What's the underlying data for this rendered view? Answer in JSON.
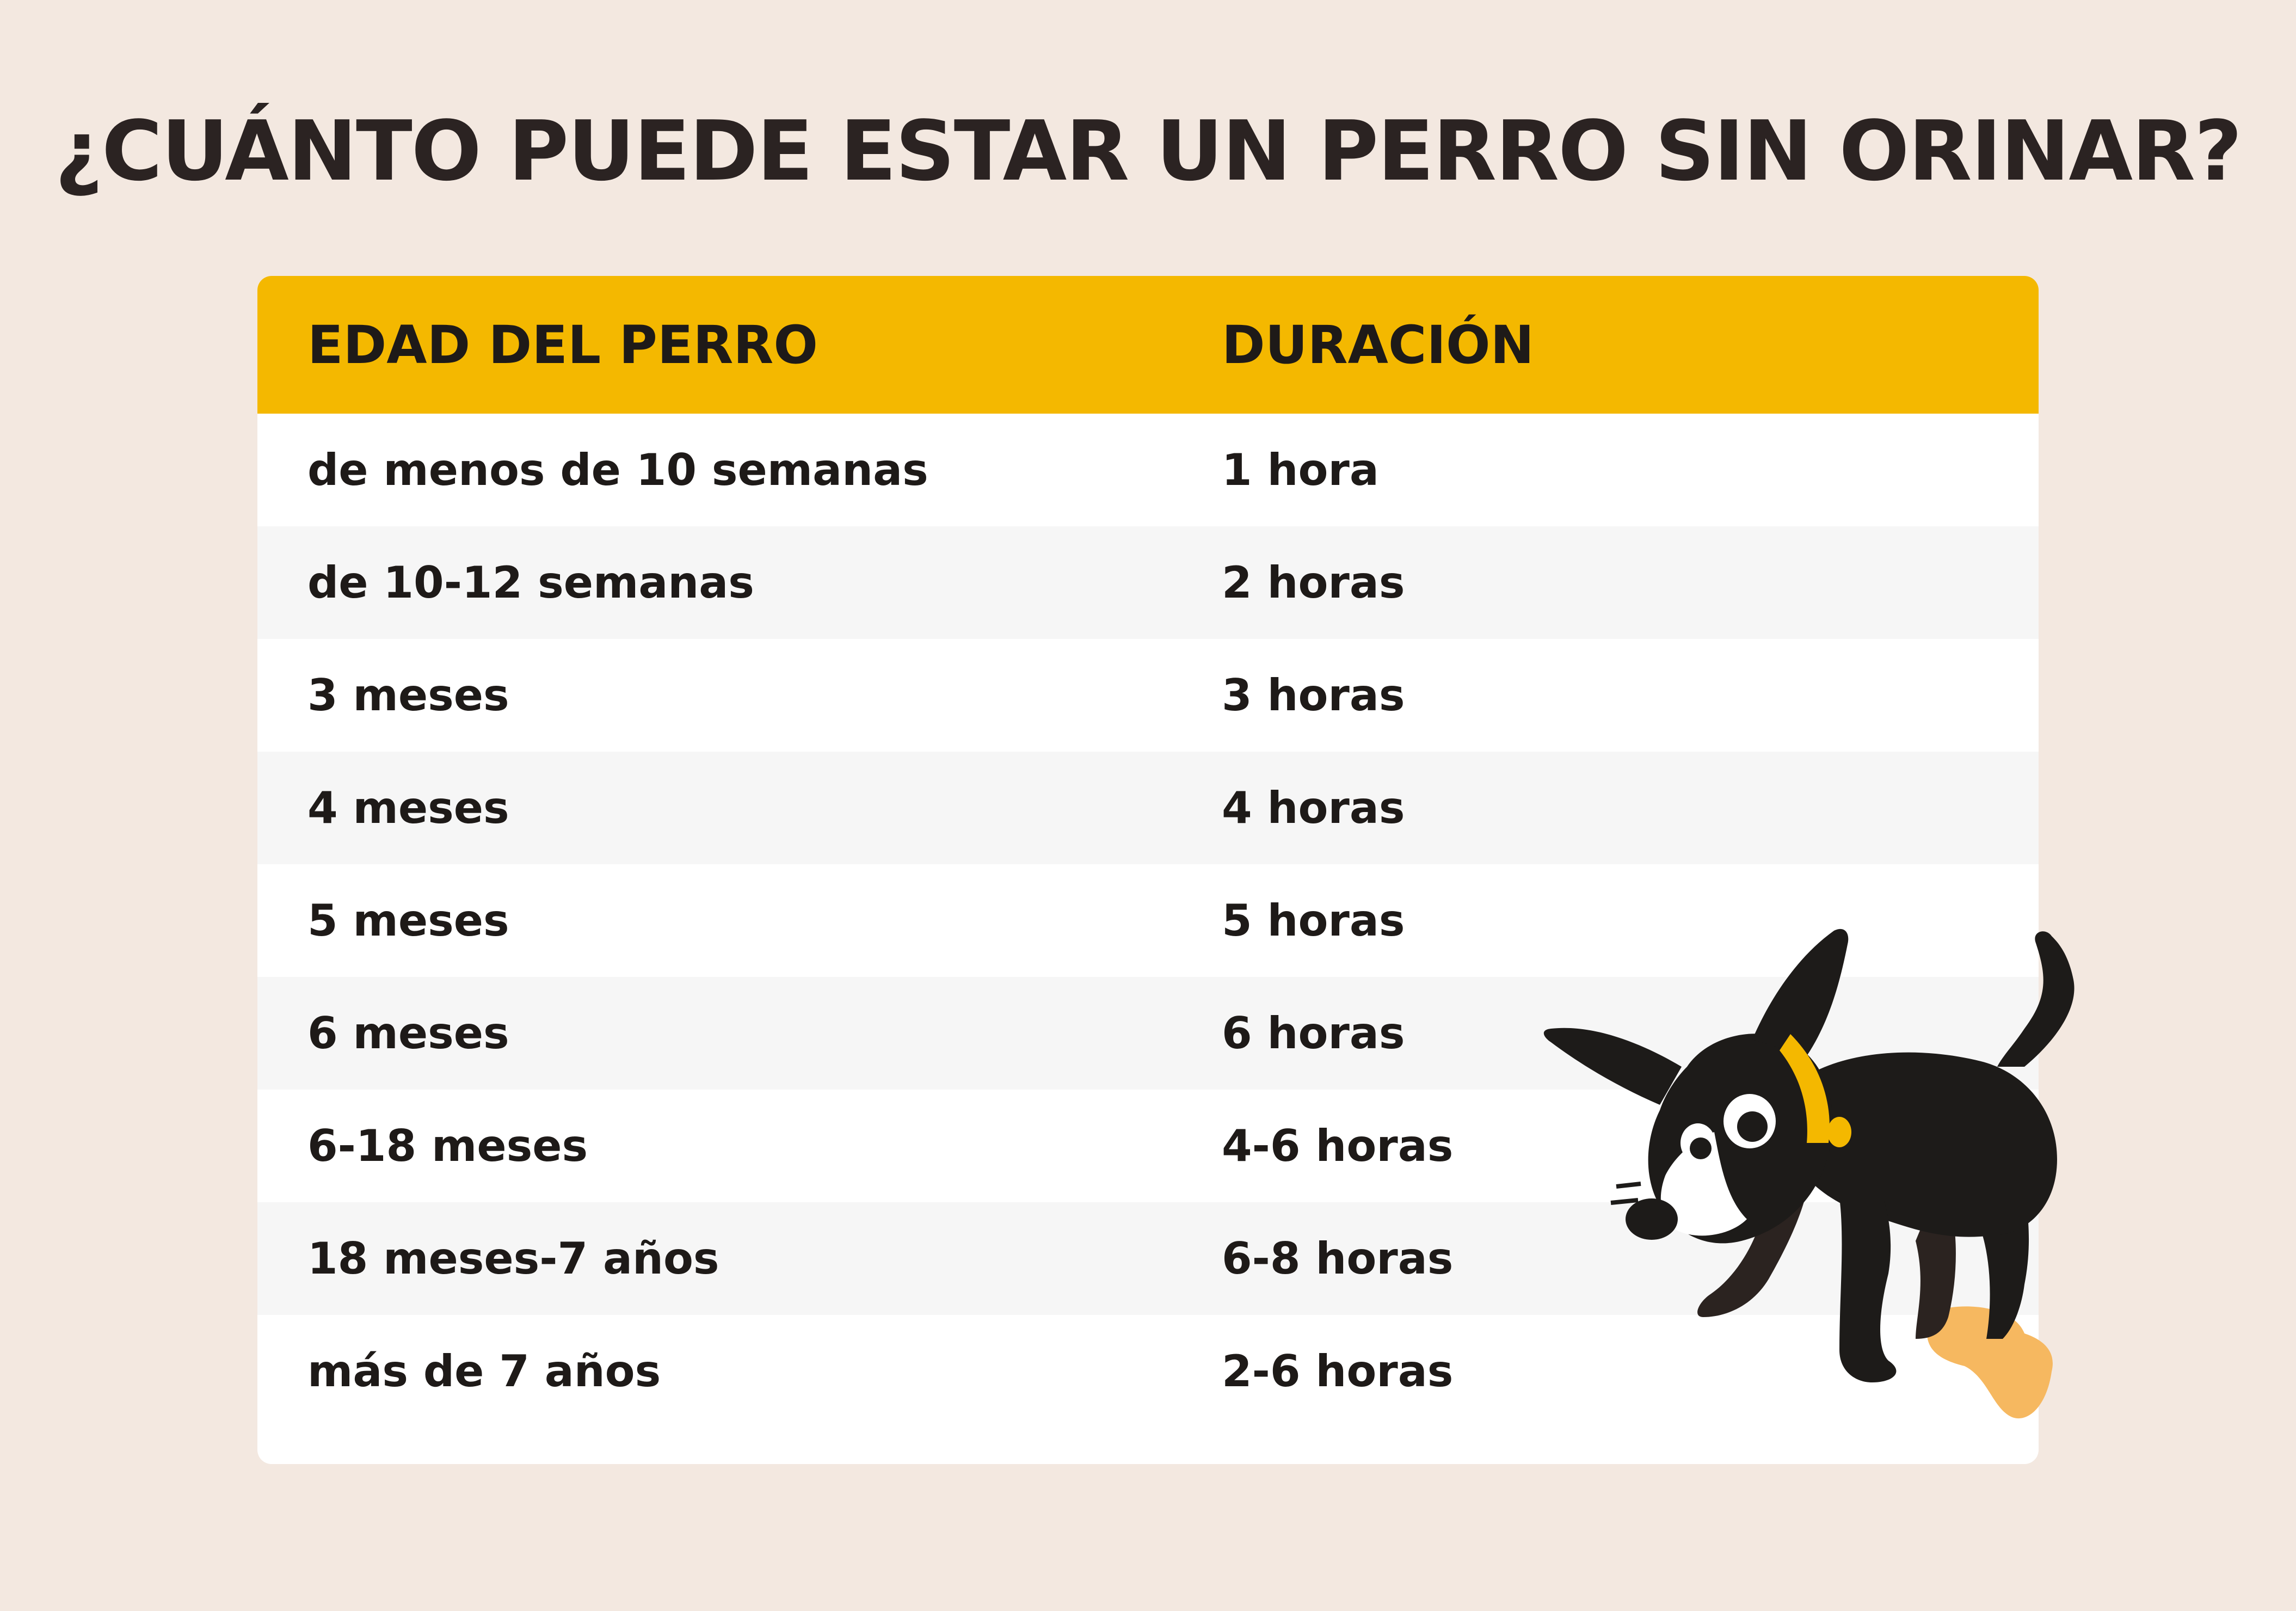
{
  "title": "¿CUÁNTO PUEDE ESTAR UN PERRO SIN ORINAR?",
  "table": {
    "headers": [
      "EDAD DEL PERRO",
      "DURACIÓN"
    ],
    "rows": [
      {
        "age": "de menos de 10 semanas",
        "duration": "1 hora"
      },
      {
        "age": "de 10-12 semanas",
        "duration": "2 horas"
      },
      {
        "age": "3 meses",
        "duration": "3 horas"
      },
      {
        "age": "4 meses",
        "duration": "4 horas"
      },
      {
        "age": "5 meses",
        "duration": "5 horas"
      },
      {
        "age": "6 meses",
        "duration": "6 horas"
      },
      {
        "age": "6-18 meses",
        "duration": "4-6 horas"
      },
      {
        "age": "18 meses-7 años",
        "duration": "6-8 horas"
      },
      {
        "age": "más de 7 años",
        "duration": "2-6 horas"
      }
    ]
  },
  "colors": {
    "background": "#f3e8e0",
    "header": "#f4b800",
    "row_alt": "#f6f6f6",
    "text": "#1e1a18"
  },
  "illustration": {
    "icon": "dog-illustration-icon"
  }
}
